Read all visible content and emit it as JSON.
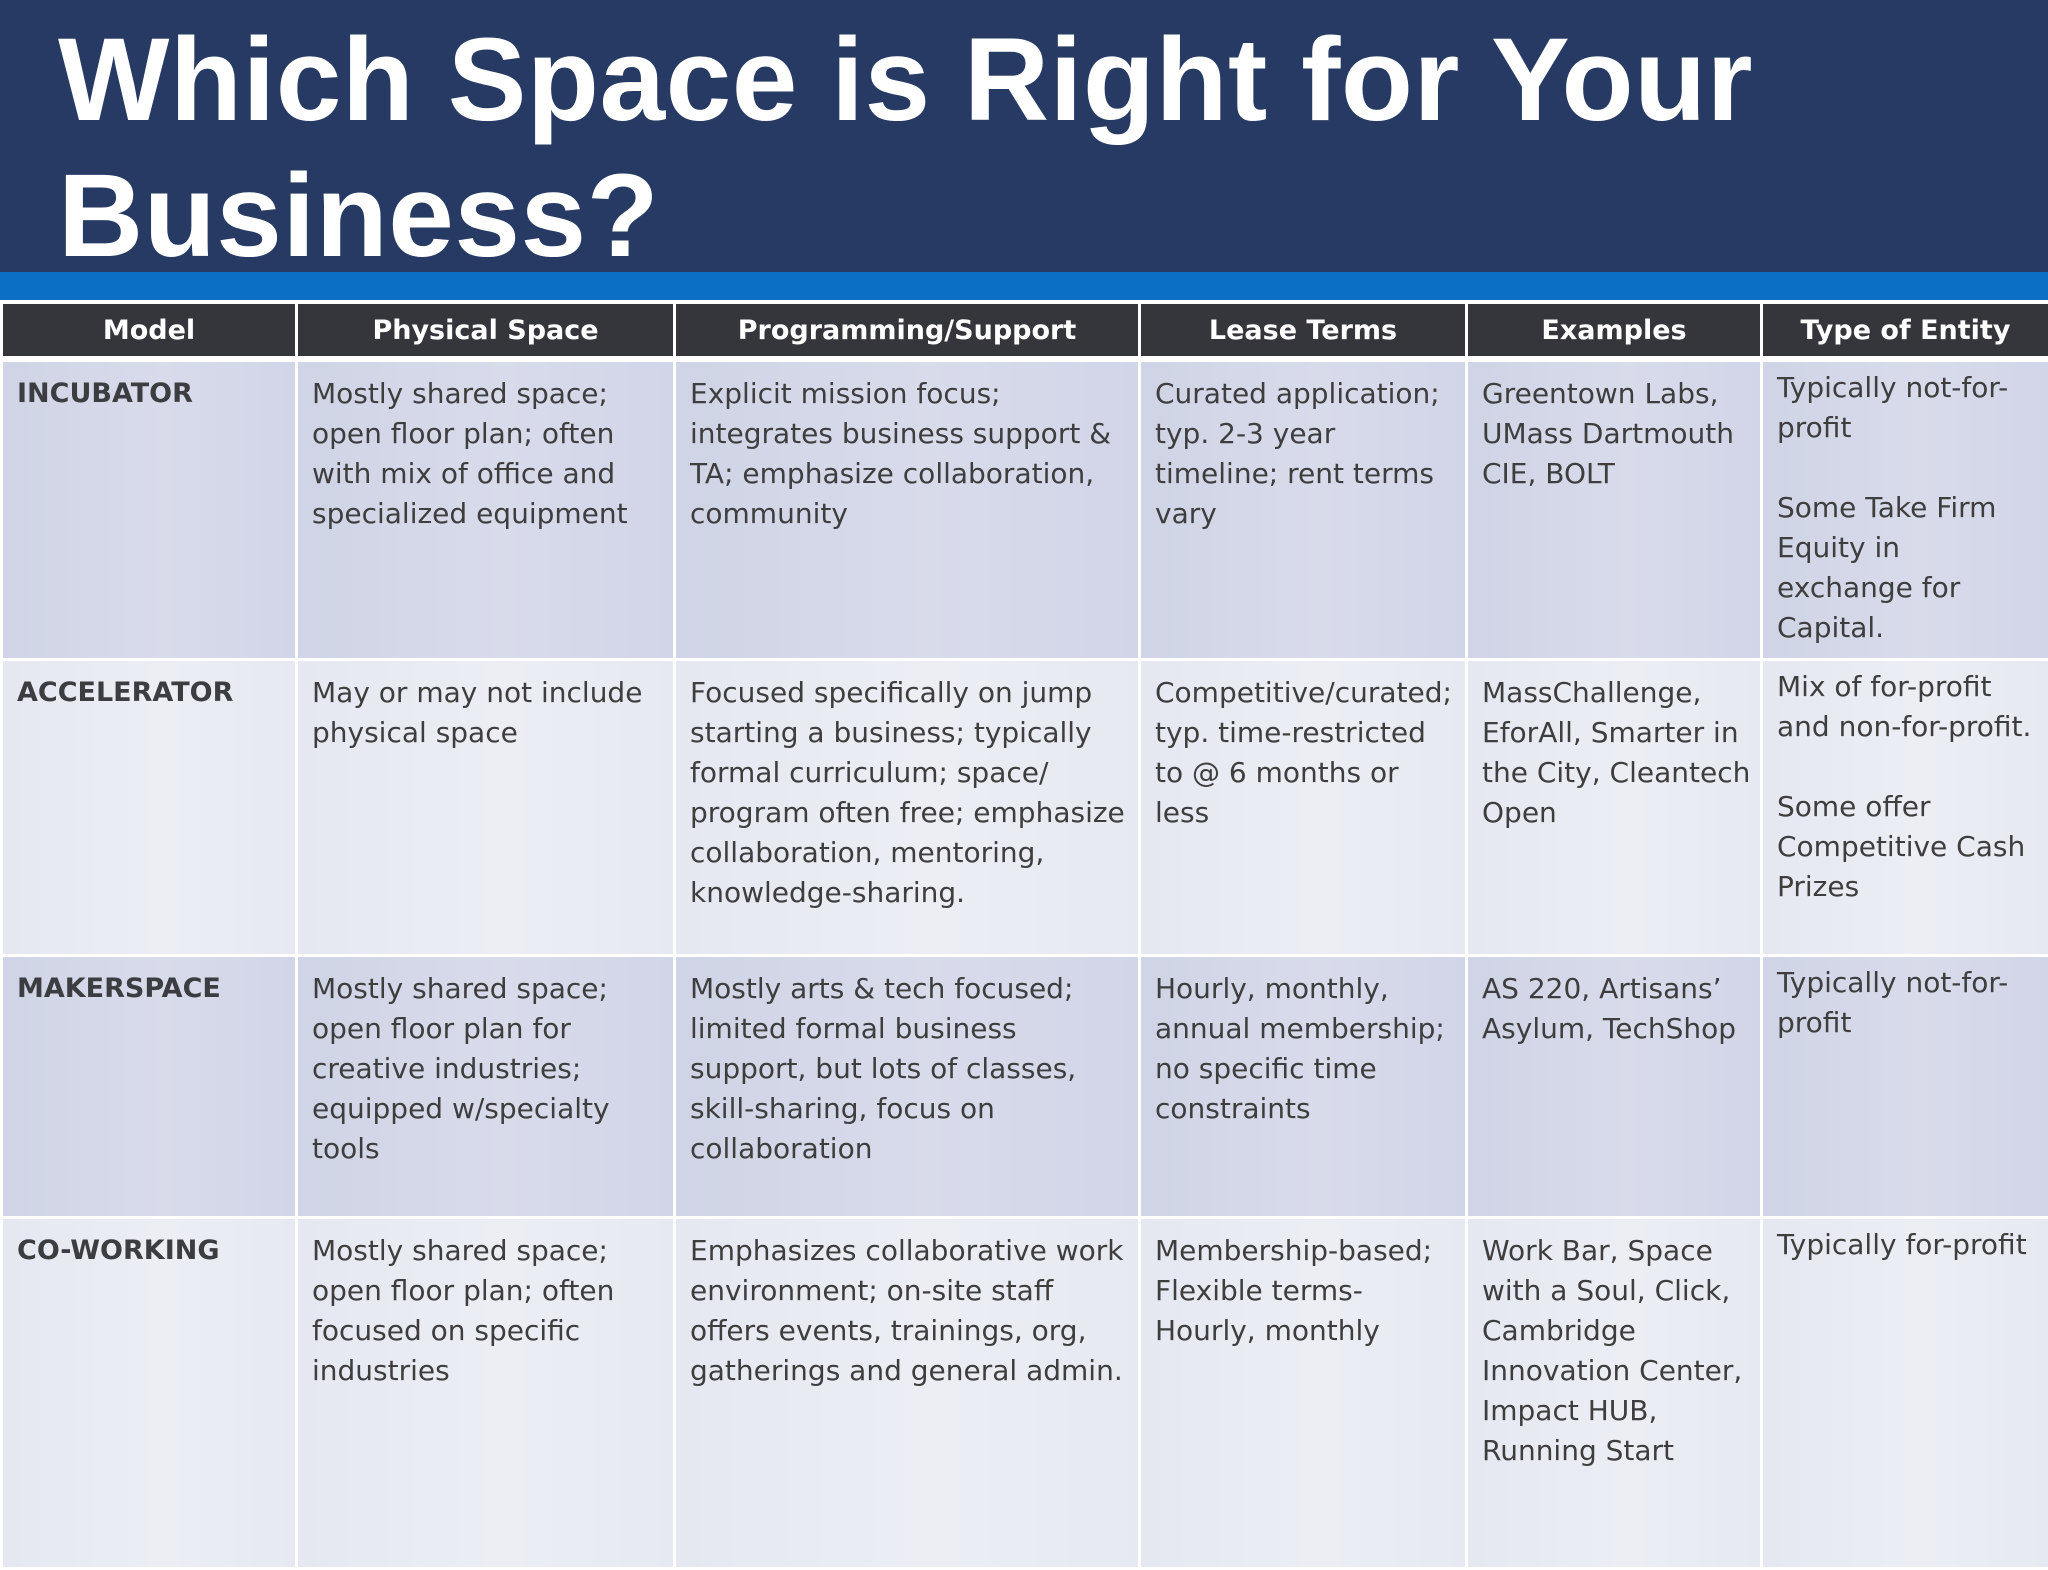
{
  "slide": {
    "title": "Which Space is Right for Your Business?"
  },
  "table": {
    "headers": [
      "Model",
      "Physical Space",
      "Programming/Support",
      "Lease Terms",
      "Examples",
      "Type of Entity"
    ],
    "rows": [
      {
        "model": "INCUBATOR",
        "physical_space": "Mostly shared space; open floor plan; often with mix of office and specialized equipment",
        "programming": "Explicit mission focus; integrates business support & TA; emphasize collaboration, community",
        "lease_terms": "Curated application; typ. 2-3 year timeline; rent terms vary",
        "examples": "Greentown Labs, UMass Dartmouth CIE, BOLT",
        "entity": "Typically not-for-profit\n\nSome Take Firm Equity in exchange for Capital."
      },
      {
        "model": "ACCELERATOR",
        "physical_space": "May or may not include physical space",
        "programming": "Focused specifically on jump starting a business; typically formal curriculum; space/ program often free; emphasize collaboration, mentoring, knowledge-sharing.",
        "lease_terms": "Competitive/curated; typ. time-restricted to @ 6 months or less",
        "examples": "MassChallenge, EforAll, Smarter in the City, Cleantech Open",
        "entity": "Mix of for-profit and non-for-profit.\n\nSome offer Competitive Cash Prizes"
      },
      {
        "model": "MAKERSPACE",
        "physical_space": "Mostly shared space; open floor plan for creative industries; equipped w/specialty tools",
        "programming": "Mostly arts & tech focused; limited formal business support, but lots of classes, skill-sharing, focus on collaboration",
        "lease_terms": "Hourly, monthly, annual membership; no specific time constraints",
        "examples": "AS 220, Artisans’ Asylum, TechShop",
        "entity": "Typically not-for-profit"
      },
      {
        "model": "CO-WORKING",
        "physical_space": "Mostly shared space; open floor plan; often focused on specific industries",
        "programming": "Emphasizes collaborative work environment; on-site staff offers events, trainings, org, gatherings and general admin.",
        "lease_terms": "Membership-based; Flexible terms-Hourly, monthly",
        "examples": "Work Bar, Space with a Soul, Click, Cambridge Innovation Center, Impact HUB, Running Start",
        "entity": "Typically for-profit"
      }
    ]
  },
  "colors": {
    "title_background": "#263a63",
    "accent_stripe": "#0b6fc6",
    "header_background": "#35363b",
    "row_dark": "#d5d9ea",
    "row_light": "#e9ebf3"
  }
}
